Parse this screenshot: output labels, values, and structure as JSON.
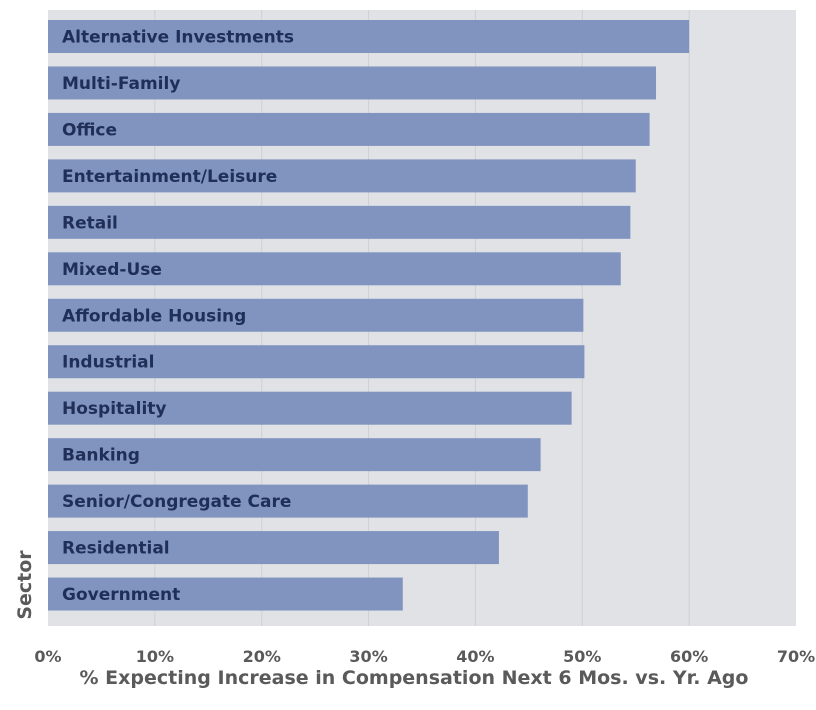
{
  "chart_data": {
    "type": "bar",
    "orientation": "horizontal",
    "categories": [
      "Alternative Investments",
      "Multi-Family",
      "Office",
      "Entertainment/Leisure",
      "Retail",
      "Mixed-Use",
      "Affordable Housing",
      "Industrial",
      "Hospitality",
      "Banking",
      "Senior/Congregate Care",
      "Residential",
      "Government"
    ],
    "values": [
      60,
      56.9,
      56.3,
      55,
      54.5,
      53.6,
      50.1,
      50.2,
      49,
      46.1,
      44.9,
      42.2,
      33.2
    ],
    "xlabel": "% Expecting Increase in Compensation Next 6 Mos. vs. Yr. Ago",
    "ylabel": "Sector",
    "xlim": [
      0,
      70
    ],
    "xticks": [
      "0%",
      "10%",
      "20%",
      "30%",
      "40%",
      "50%",
      "60%",
      "70%"
    ],
    "grid": true,
    "colors": {
      "bar": "#8194c0",
      "plot_background": "#e1e2e5",
      "gridline": "#cfd0d4",
      "label_text": "#1f2f57",
      "axis_text": "#5a5a5a"
    }
  }
}
